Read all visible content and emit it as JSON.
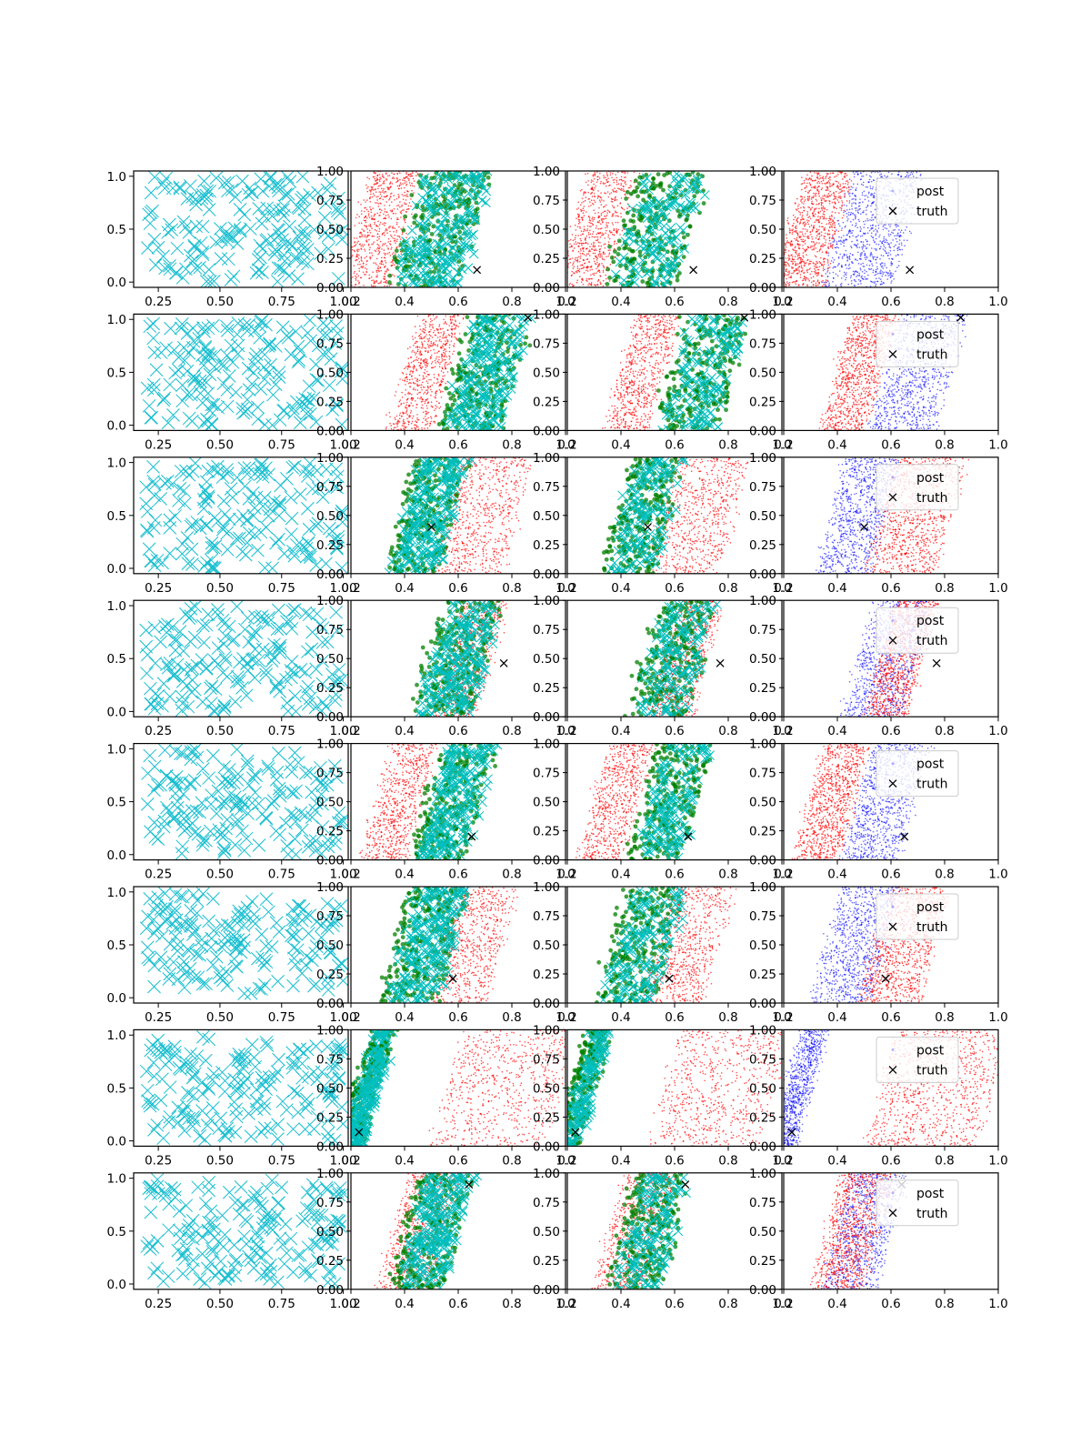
{
  "figure": {
    "rows": 8,
    "cols": 4
  },
  "colors": {
    "grid_marker": "#17becf",
    "prior": "#ff0000",
    "post": "#0000ff",
    "truth": "#000000",
    "green": "#008000",
    "cyan": "#00bfbf"
  },
  "legend": {
    "post_label": "post",
    "truth_label": "truth"
  },
  "chart_data": {
    "type": "scatter",
    "panel_kinds": [
      "grid",
      "post-overlay",
      "post-overlay",
      "posterior"
    ],
    "grid_panel": {
      "xlim": [
        0.15,
        1.02
      ],
      "ylim": [
        -0.05,
        1.05
      ],
      "xticks": [
        "0.25",
        "0.50",
        "0.75",
        "1.00"
      ],
      "yticks": [
        "0.0",
        "0.5",
        "1.0"
      ]
    },
    "post_panel": {
      "xlim": [
        0.2,
        1.0
      ],
      "ylim": [
        0.0,
        1.0
      ],
      "xticks": [
        "0.2",
        "0.4",
        "0.6",
        "0.8",
        "1.0"
      ],
      "yticks": [
        "0.00",
        "0.25",
        "0.50",
        "0.75",
        "1.00"
      ]
    },
    "rows": [
      {
        "truth": [
          0.67,
          0.15
        ],
        "red_band": [
          0.22,
          0.4
        ],
        "blue_band": [
          0.4,
          0.66
        ],
        "flip": false
      },
      {
        "truth": [
          0.86,
          0.97
        ],
        "red_band": [
          0.4,
          0.56
        ],
        "blue_band": [
          0.58,
          0.82
        ],
        "flip": false
      },
      {
        "truth": [
          0.5,
          0.4
        ],
        "red_band": [
          0.56,
          0.82
        ],
        "blue_band": [
          0.38,
          0.58
        ],
        "flip": true
      },
      {
        "truth": [
          0.77,
          0.46
        ],
        "red_band": [
          0.56,
          0.72
        ],
        "blue_band": [
          0.48,
          0.7
        ],
        "flip": true
      },
      {
        "truth": [
          0.65,
          0.2
        ],
        "red_band": [
          0.3,
          0.46
        ],
        "blue_band": [
          0.48,
          0.68
        ],
        "flip": false
      },
      {
        "truth": [
          0.58,
          0.21
        ],
        "red_band": [
          0.54,
          0.76
        ],
        "blue_band": [
          0.36,
          0.58
        ],
        "flip": true
      },
      {
        "truth": [
          0.23,
          0.12
        ],
        "red_band": [
          0.56,
          0.98
        ],
        "blue_band": [
          0.21,
          0.3
        ],
        "flip": true
      },
      {
        "truth": [
          0.64,
          0.9
        ],
        "red_band": [
          0.36,
          0.55
        ],
        "blue_band": [
          0.4,
          0.6
        ],
        "flip": false
      }
    ]
  }
}
